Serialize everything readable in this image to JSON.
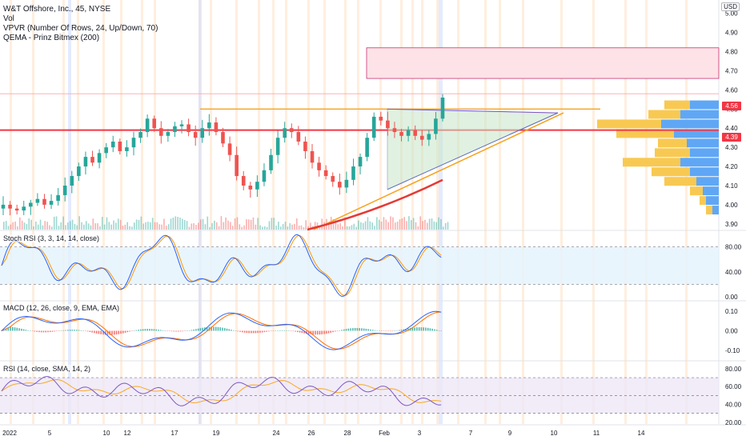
{
  "main_legend": {
    "title": "W&T Offshore, Inc., 45, NYSE",
    "lines": [
      "Vol",
      "VPVR (Number Of Rows, 24, Up/Down, 70)",
      "QEMA - Prinz Bitmex (200)"
    ]
  },
  "currency_label": "USD",
  "price_tags": {
    "last": "4.56",
    "level": "4.39"
  },
  "colors": {
    "up": "#26a69a",
    "down": "#ef5350",
    "accent_orange": "#f7a21b",
    "accent_red": "#f23645",
    "blue": "#2962ff",
    "volume_profile_up": "#5fa7f5",
    "volume_profile_down": "#f8c952",
    "stoch_band": "#e3f2fd",
    "rsi_band": "#ede7f6"
  },
  "chart_data": [
    {
      "type": "candlestick",
      "title": "W&T Offshore, Inc., 45, NYSE",
      "y_axis_ticks": [
        "5.00",
        "4.90",
        "4.80",
        "4.70",
        "4.60",
        "4.50",
        "4.40",
        "4.30",
        "4.20",
        "4.10",
        "4.00",
        "3.90"
      ],
      "ylim": [
        3.87,
        5.07
      ],
      "x_axis_ticks": [
        "2022",
        "5",
        "10",
        "12",
        "17",
        "19",
        "24",
        "26",
        "28",
        "Feb",
        "3",
        "7",
        "9",
        "10",
        "11",
        "14"
      ],
      "close_series": [
        4.0,
        3.98,
        3.97,
        3.99,
        4.01,
        4.03,
        4.0,
        4.02,
        4.05,
        4.1,
        4.15,
        4.2,
        4.25,
        4.22,
        4.27,
        4.3,
        4.33,
        4.28,
        4.3,
        4.35,
        4.38,
        4.45,
        4.4,
        4.36,
        4.38,
        4.41,
        4.42,
        4.38,
        4.35,
        4.4,
        4.43,
        4.38,
        4.32,
        4.26,
        4.15,
        4.1,
        4.08,
        4.12,
        4.18,
        4.26,
        4.35,
        4.4,
        4.38,
        4.33,
        4.28,
        4.22,
        4.18,
        4.15,
        4.12,
        4.09,
        4.13,
        4.2,
        4.25,
        4.35,
        4.46,
        4.44,
        4.4,
        4.38,
        4.36,
        4.39,
        4.36,
        4.34,
        4.37,
        4.45,
        4.56
      ],
      "annotations": {
        "resistance_level": 4.5,
        "support_level": 4.39,
        "target_zone": [
          4.66,
          4.82
        ],
        "last_price": 4.56,
        "rising_trendline_label": "QEMA (200)"
      },
      "volume_profile": [
        {
          "price": 4.52,
          "up": 0.45,
          "down": 0.4
        },
        {
          "price": 4.47,
          "up": 0.6,
          "down": 0.5
        },
        {
          "price": 4.42,
          "up": 0.9,
          "down": 1.0
        },
        {
          "price": 4.37,
          "up": 0.7,
          "down": 0.9
        },
        {
          "price": 4.32,
          "up": 0.5,
          "down": 0.45
        },
        {
          "price": 4.27,
          "up": 0.45,
          "down": 0.55
        },
        {
          "price": 4.22,
          "up": 0.6,
          "down": 0.9
        },
        {
          "price": 4.17,
          "up": 0.45,
          "down": 0.6
        },
        {
          "price": 4.12,
          "up": 0.35,
          "down": 0.5
        },
        {
          "price": 4.07,
          "up": 0.25,
          "down": 0.2
        },
        {
          "price": 4.02,
          "up": 0.2,
          "down": 0.1
        },
        {
          "price": 3.97,
          "up": 0.1,
          "down": 0.1
        }
      ]
    },
    {
      "type": "line",
      "title": "Stoch RSI (3, 3, 14, 14, close)",
      "y_axis_ticks": [
        "80.00",
        "40.00",
        "0.00"
      ],
      "ylim": [
        -5,
        105
      ],
      "bands": [
        20,
        80
      ]
    },
    {
      "type": "bar",
      "title": "MACD (12, 26, close, 9, EMA, EMA)",
      "y_axis_ticks": [
        "0.10",
        "0.00",
        "-0.10"
      ],
      "ylim": [
        -0.15,
        0.15
      ]
    },
    {
      "type": "line",
      "title": "RSI (14, close, SMA, 14, 2)",
      "y_axis_ticks": [
        "80.00",
        "60.00",
        "40.00",
        "20.00"
      ],
      "ylim": [
        18,
        88
      ],
      "bands": [
        30,
        70
      ]
    }
  ]
}
